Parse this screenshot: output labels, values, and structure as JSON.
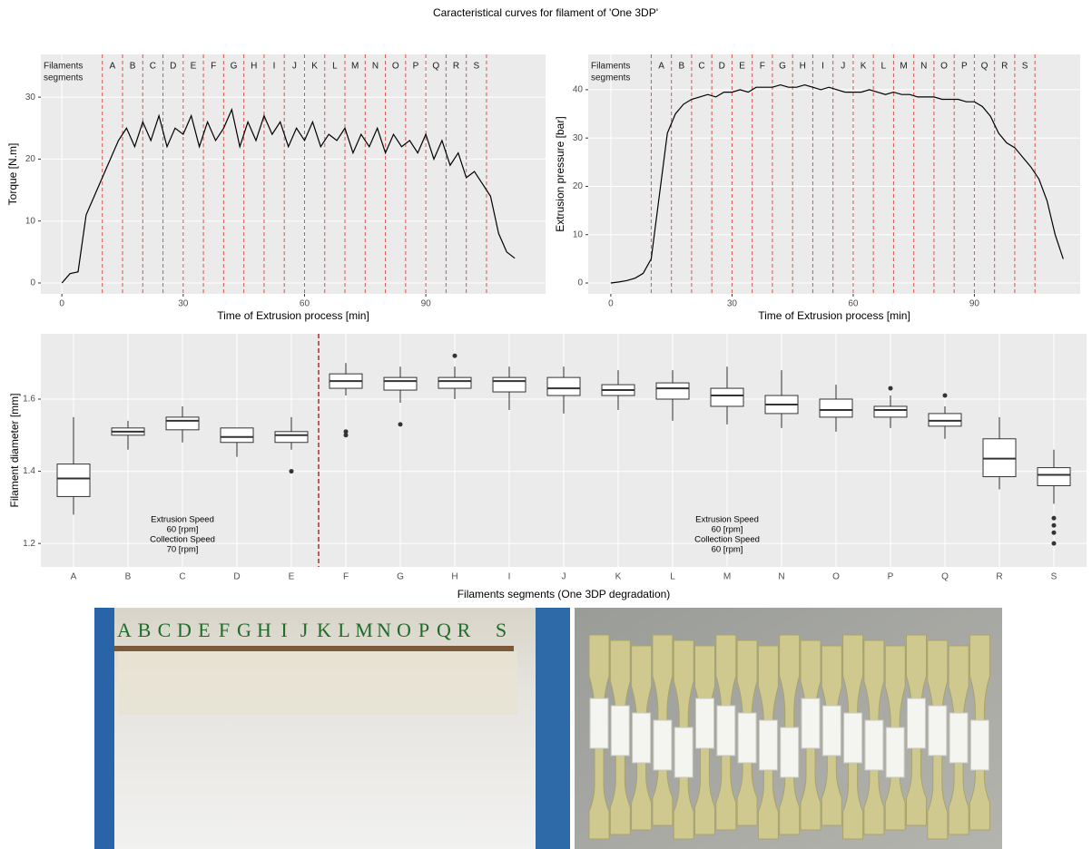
{
  "title": "Caracteristical curves for filament of 'One 3DP'",
  "chart_data": [
    {
      "type": "line",
      "xlabel": "Time of Extrusion process [min]",
      "ylabel": "Torque [N.m]",
      "color": "#000000",
      "grid": true,
      "xlim": [
        -5.2,
        119.6
      ],
      "ylim": [
        -1.76,
        36.9
      ],
      "xticks": [
        0,
        30,
        60,
        90
      ],
      "yticks": [
        0,
        10,
        20,
        30
      ],
      "segment_title": [
        "Filaments",
        "segments"
      ],
      "segment_labels": [
        "A",
        "B",
        "C",
        "D",
        "E",
        "F",
        "G",
        "H",
        "I",
        "J",
        "K",
        "L",
        "M",
        "N",
        "O",
        "P",
        "Q",
        "R",
        "S"
      ],
      "segment_bounds": [
        10,
        15,
        20,
        25,
        30,
        35,
        40,
        45,
        50,
        55,
        60,
        65,
        70,
        75,
        80,
        85,
        90,
        95,
        100,
        105
      ],
      "segment_color": "#d9534f",
      "x": [
        0,
        2,
        4,
        6,
        8,
        10,
        12,
        14,
        16,
        18,
        20,
        22,
        24,
        26,
        28,
        30,
        32,
        34,
        36,
        38,
        40,
        42,
        44,
        46,
        48,
        50,
        52,
        54,
        56,
        58,
        60,
        62,
        64,
        66,
        68,
        70,
        72,
        74,
        76,
        78,
        80,
        82,
        84,
        86,
        88,
        90,
        92,
        94,
        96,
        98,
        100,
        102,
        104,
        106,
        108,
        110,
        112
      ],
      "values": [
        0,
        1.5,
        1.8,
        11,
        14,
        17,
        20,
        23,
        25,
        22,
        26,
        23,
        27,
        22,
        25,
        24,
        27,
        22,
        26,
        23,
        25,
        28,
        22,
        26,
        23,
        27,
        24,
        26,
        22,
        25,
        23,
        26,
        22,
        24,
        23,
        25,
        21,
        24,
        22,
        25,
        21,
        24,
        22,
        23,
        21,
        24,
        20,
        23,
        19,
        21,
        17,
        18,
        16,
        14,
        8,
        5,
        4
      ]
    },
    {
      "type": "line",
      "xlabel": "Time of Extrusion process [min]",
      "ylabel": "Extrusion pressure [bar]",
      "color": "#000000",
      "grid": true,
      "xlim": [
        -5.6,
        116.2
      ],
      "ylim": [
        -2.25,
        47.3
      ],
      "xticks": [
        0,
        30,
        60,
        90
      ],
      "yticks": [
        0,
        10,
        20,
        30,
        40
      ],
      "segment_title": [
        "Filaments",
        "segments"
      ],
      "segment_labels": [
        "A",
        "B",
        "C",
        "D",
        "E",
        "F",
        "G",
        "H",
        "I",
        "J",
        "K",
        "L",
        "M",
        "N",
        "O",
        "P",
        "Q",
        "R",
        "S"
      ],
      "segment_bounds": [
        10,
        15,
        20,
        25,
        30,
        35,
        40,
        45,
        50,
        55,
        60,
        65,
        70,
        75,
        80,
        85,
        90,
        95,
        100,
        105
      ],
      "segment_color": "#d9534f",
      "x": [
        0,
        2,
        4,
        6,
        8,
        10,
        12,
        14,
        16,
        18,
        20,
        22,
        24,
        26,
        28,
        30,
        32,
        34,
        36,
        38,
        40,
        42,
        44,
        46,
        48,
        50,
        52,
        54,
        56,
        58,
        60,
        62,
        64,
        66,
        68,
        70,
        72,
        74,
        76,
        78,
        80,
        82,
        84,
        86,
        88,
        90,
        92,
        94,
        96,
        98,
        100,
        102,
        104,
        106,
        108,
        110,
        112
      ],
      "values": [
        0,
        0.2,
        0.5,
        1,
        2,
        5,
        18,
        31,
        35,
        37,
        38,
        38.5,
        39,
        38.5,
        39.5,
        39.5,
        40,
        39.5,
        40.5,
        40.5,
        40.5,
        41,
        40.5,
        40.5,
        41,
        40.5,
        40,
        40.5,
        40,
        39.5,
        39.5,
        39.5,
        40,
        39.5,
        39,
        39.5,
        39,
        39,
        38.5,
        38.5,
        38.5,
        38,
        38,
        38,
        37.5,
        37.5,
        36.5,
        34.5,
        31,
        29,
        28,
        26,
        24,
        21.5,
        17,
        10,
        5
      ]
    },
    {
      "type": "box",
      "xlabel": "Filaments segments  (One 3DP degradation)",
      "ylabel": "Filament diameter [mm]",
      "grid": true,
      "ylim": [
        1.135,
        1.781
      ],
      "yticks": [
        1.2,
        1.4,
        1.6
      ],
      "categories": [
        "A",
        "B",
        "C",
        "D",
        "E",
        "F",
        "G",
        "H",
        "I",
        "J",
        "K",
        "L",
        "M",
        "N",
        "O",
        "P",
        "Q",
        "R",
        "S"
      ],
      "min": [
        1.28,
        1.46,
        1.48,
        1.44,
        1.46,
        1.61,
        1.59,
        1.6,
        1.57,
        1.56,
        1.57,
        1.54,
        1.53,
        1.52,
        1.51,
        1.52,
        1.49,
        1.35,
        1.31
      ],
      "q1": [
        1.33,
        1.5,
        1.515,
        1.48,
        1.48,
        1.63,
        1.625,
        1.63,
        1.62,
        1.61,
        1.61,
        1.6,
        1.58,
        1.56,
        1.55,
        1.55,
        1.525,
        1.385,
        1.36
      ],
      "median": [
        1.38,
        1.51,
        1.54,
        1.495,
        1.5,
        1.65,
        1.65,
        1.65,
        1.65,
        1.63,
        1.625,
        1.63,
        1.61,
        1.585,
        1.57,
        1.57,
        1.54,
        1.435,
        1.39
      ],
      "q3": [
        1.42,
        1.52,
        1.55,
        1.52,
        1.51,
        1.67,
        1.66,
        1.66,
        1.66,
        1.66,
        1.64,
        1.645,
        1.63,
        1.61,
        1.6,
        1.58,
        1.56,
        1.49,
        1.41
      ],
      "max": [
        1.55,
        1.54,
        1.58,
        1.52,
        1.55,
        1.7,
        1.69,
        1.69,
        1.69,
        1.69,
        1.68,
        1.68,
        1.69,
        1.68,
        1.64,
        1.61,
        1.58,
        1.55,
        1.46
      ],
      "outliers": [
        [],
        [],
        [],
        [],
        [
          1.4
        ],
        [
          1.51,
          1.5
        ],
        [
          1.53
        ],
        [
          1.72
        ],
        [],
        [],
        [],
        [],
        [],
        [],
        [],
        [
          1.63
        ],
        [
          1.61
        ],
        [],
        [
          1.27,
          1.25,
          1.23,
          1.2
        ]
      ],
      "divider_after": "E",
      "divider_color": "#8b0000",
      "annotations": [
        {
          "category": "C",
          "lines": [
            "Extrusion Speed",
            "60 [rpm]",
            "Collection Speed",
            "70 [rpm]"
          ]
        },
        {
          "category": "M",
          "lines": [
            "Extrusion Speed",
            "60 [rpm]",
            "Collection Speed",
            "60 [rpm]"
          ]
        }
      ]
    }
  ],
  "photo_labels": [
    "A",
    "B",
    "C",
    "D",
    "E",
    "F",
    "G",
    "H",
    "I",
    "J",
    "K",
    "L",
    "M",
    "N",
    "O",
    "P",
    "Q",
    "R",
    "S"
  ]
}
